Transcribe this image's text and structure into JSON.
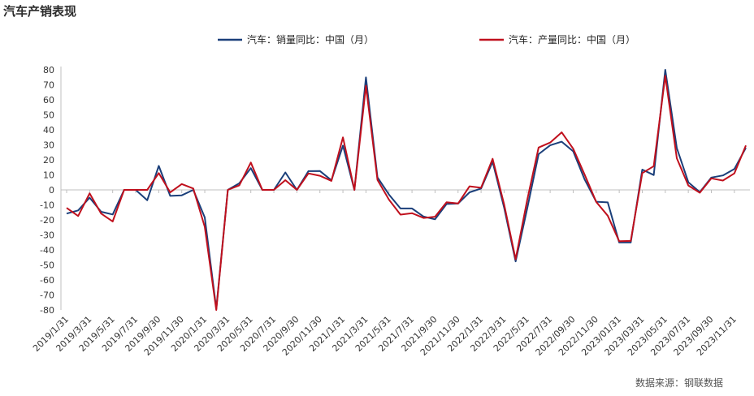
{
  "page": {
    "title": "汽车产销表现",
    "source": "数据来源：钢联数据"
  },
  "chart_data": {
    "type": "line",
    "title": "汽车产销表现",
    "xlabel": "",
    "ylabel": "",
    "ylim": [
      -80,
      80
    ],
    "yticks": [
      -80,
      -70,
      -60,
      -50,
      -40,
      -30,
      -20,
      -10,
      0,
      10,
      20,
      30,
      40,
      50,
      60,
      70,
      80
    ],
    "grid": false,
    "legend": "top",
    "x": [
      "2019/1/31",
      "2019/2/28",
      "2019/3/31",
      "2019/4/30",
      "2019/5/31",
      "2019/6/30",
      "2019/7/31",
      "2019/8/31",
      "2019/9/30",
      "2019/10/31",
      "2019/11/30",
      "2019/12/31",
      "2020/1/31",
      "2020/2/29",
      "2020/3/31",
      "2020/4/30",
      "2020/5/31",
      "2020/6/30",
      "2020/7/31",
      "2020/8/31",
      "2020/9/30",
      "2020/10/31",
      "2020/11/30",
      "2020/12/31",
      "2021/1/31",
      "2021/2/28",
      "2021/3/31",
      "2021/4/30",
      "2021/5/31",
      "2021/6/30",
      "2021/7/31",
      "2021/8/31",
      "2021/9/30",
      "2021/10/31",
      "2021/11/30",
      "2021/12/31",
      "2022/1/31",
      "2022/2/28",
      "2022/3/31",
      "2022/4/30",
      "2022/5/31",
      "2022/6/30",
      "2022/7/31",
      "2022/8/31",
      "2022/9/30",
      "2022/10/31",
      "2022/11/30",
      "2022/12/31",
      "2023/01/31",
      "2023/02/28",
      "2023/03/31",
      "2023/04/30",
      "2023/05/31",
      "2023/06/30",
      "2023/07/31",
      "2023/08/31",
      "2023/09/30",
      "2023/10/31",
      "2023/11/30",
      "2023/12/31"
    ],
    "xtick_labels": [
      "2019/1/31",
      "2019/3/31",
      "2019/5/31",
      "2019/7/31",
      "2019/9/30",
      "2019/11/30",
      "2020/1/31",
      "2020/3/31",
      "2020/5/31",
      "2020/7/31",
      "2020/9/30",
      "2020/11/30",
      "2021/1/31",
      "2021/3/31",
      "2021/5/31",
      "2021/7/31",
      "2021/9/30",
      "2021/11/30",
      "2022/1/31",
      "2022/3/31",
      "2022/5/31",
      "2022/7/31",
      "2022/09/30",
      "2022/11/30",
      "2023/01/31",
      "2023/03/31",
      "2023/05/31",
      "2023/07/31",
      "2023/09/30",
      "2023/11/31"
    ],
    "series": [
      {
        "name": "汽车：销量同比：中国（月）",
        "color": "#1b3f7a",
        "values": [
          -15.8,
          -13.7,
          -5.2,
          -14.6,
          -16.4,
          0,
          0,
          -6.9,
          16,
          -4,
          -3.6,
          0,
          -18.3,
          -79.2,
          0,
          4.4,
          14.5,
          0,
          0,
          11.6,
          0,
          12.5,
          12.6,
          6.4,
          29.5,
          0,
          74.9,
          8.3,
          -3.1,
          -12.4,
          -12.4,
          -17.8,
          -19.6,
          -9.4,
          -9.1,
          -1.6,
          0.9,
          18.7,
          -11.7,
          -47.6,
          -12.6,
          23.8,
          29.7,
          32.1,
          25.7,
          6.9,
          -7.9,
          -8.3,
          -35,
          -35,
          13.5,
          9.9,
          80,
          27.9,
          5.1,
          -1.5,
          8.2,
          9.6,
          13.9,
          28
        ]
      },
      {
        "name": "汽车：产量同比：中国（月）",
        "color": "#c0101d",
        "values": [
          -12,
          -17.4,
          -2.3,
          -15.8,
          -21,
          0,
          0,
          0,
          11.2,
          -1.7,
          3.9,
          0.9,
          -24.6,
          -80,
          0,
          3,
          18.2,
          0,
          0,
          6.5,
          0,
          11,
          9.4,
          6,
          35,
          0,
          69.4,
          6.6,
          -6.5,
          -16.5,
          -15.5,
          -18.7,
          -17.9,
          -8.2,
          -9.1,
          2.4,
          1.4,
          20.7,
          -9.5,
          -46.2,
          -6.9,
          28.2,
          31.5,
          38.3,
          27.4,
          10.1,
          -8,
          -17.2,
          -34.2,
          -34,
          11.2,
          15.8,
          76,
          21.1,
          2.9,
          -1.9,
          7.7,
          6.2,
          11,
          29.6
        ]
      }
    ]
  }
}
